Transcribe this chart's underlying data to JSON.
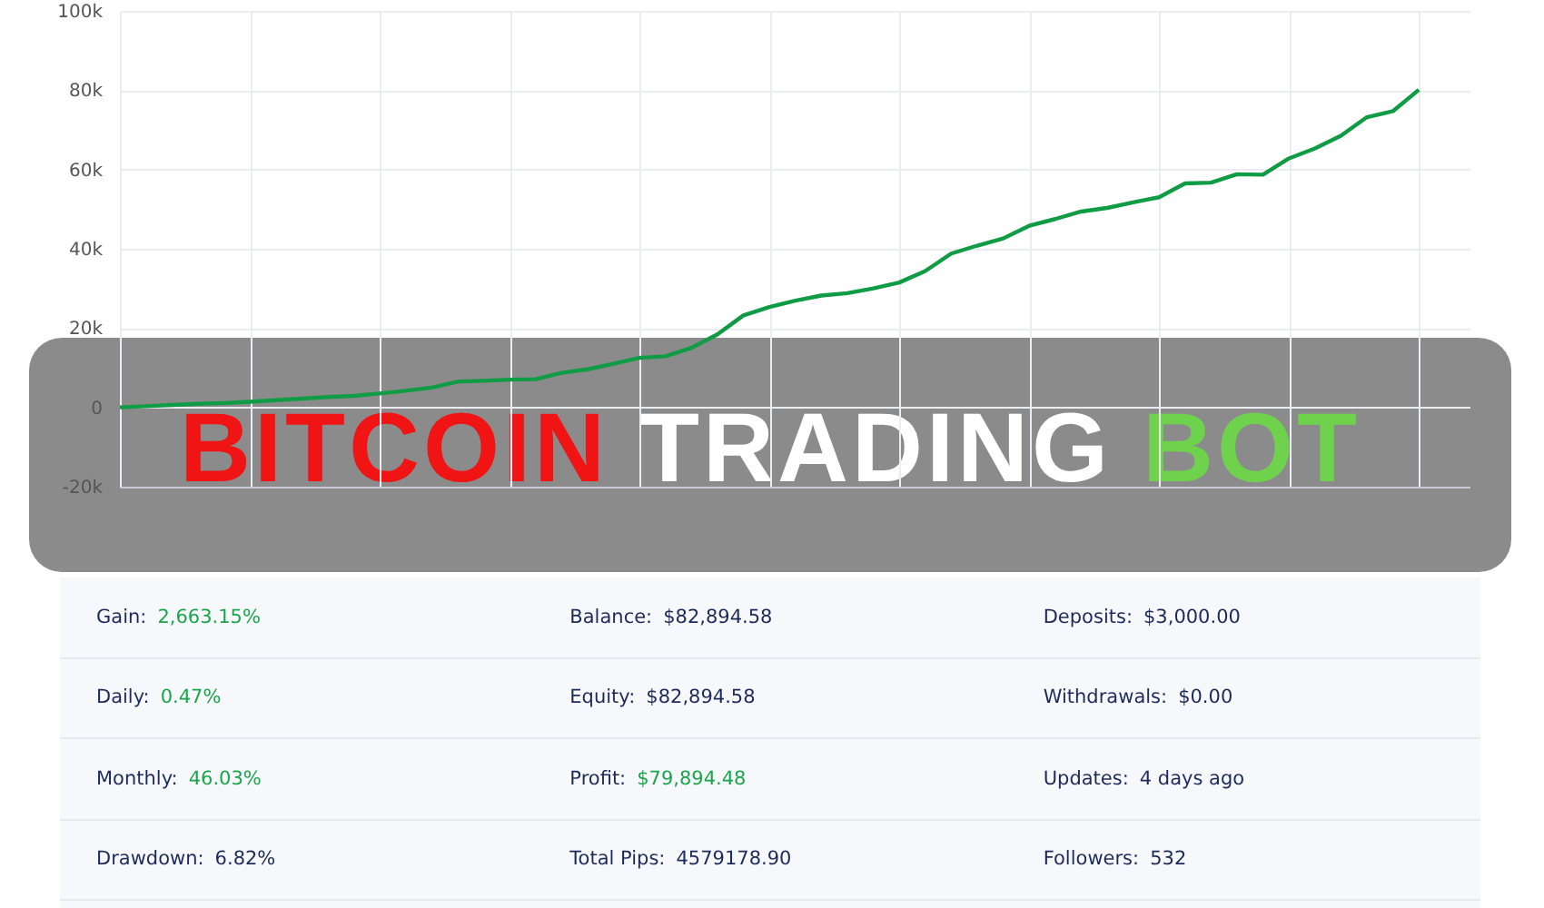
{
  "chart_data": [
    {
      "type": "line",
      "categories": [
        null,
        null,
        null,
        null,
        null,
        null,
        null,
        null,
        null,
        null,
        null,
        null,
        null,
        null,
        null,
        null,
        null,
        null,
        null,
        null,
        null,
        null,
        null,
        null,
        null,
        null,
        null,
        null,
        null,
        null,
        null,
        null,
        null,
        null,
        null,
        null,
        null,
        null,
        null,
        null,
        null,
        null,
        null,
        null,
        null,
        null,
        null,
        null,
        null,
        null,
        null
      ],
      "values": [
        0,
        300,
        600,
        900,
        1100,
        1400,
        1800,
        2200,
        2600,
        2900,
        3500,
        4200,
        5000,
        6500,
        6700,
        7000,
        7100,
        8700,
        9600,
        11000,
        12500,
        12900,
        15000,
        18400,
        23200,
        25300,
        26900,
        28200,
        28800,
        30000,
        31500,
        34400,
        38800,
        40800,
        42600,
        45800,
        47500,
        49400,
        50300,
        51700,
        53000,
        56500,
        56700,
        58800,
        58700,
        62800,
        65300,
        68500,
        73200,
        74700,
        80100
      ],
      "color": "#109c44",
      "ylim": [
        -20000,
        100000
      ],
      "yticks": [
        {
          "value": -20000,
          "label": "-20k"
        },
        0,
        {
          "value": 20000,
          "label": "20k"
        },
        {
          "value": 40000,
          "label": "40k"
        },
        {
          "value": 60000,
          "label": "60k"
        },
        {
          "value": 80000,
          "label": "80k"
        },
        {
          "value": 100000,
          "label": "100k"
        }
      ],
      "grid": true,
      "tick_labels": "y",
      "annotations": [
        "BITCOIN TRADING BOT"
      ]
    },
    {
      "type": "other",
      "annotations": [
        "Gain: 2,663.15%",
        "Balance: $82,894.58",
        "Deposits: $3,000.00",
        "Daily: 0.47%",
        "Equity: $82,894.58",
        "Withdrawals: $0.00",
        "Monthly: 46.03%",
        "Profit: $79,894.48",
        "Updates: 4 days ago",
        "Drawdown: 6.82%",
        "Total Pips: 4579178.90",
        "Followers: 532"
      ]
    }
  ]
}
